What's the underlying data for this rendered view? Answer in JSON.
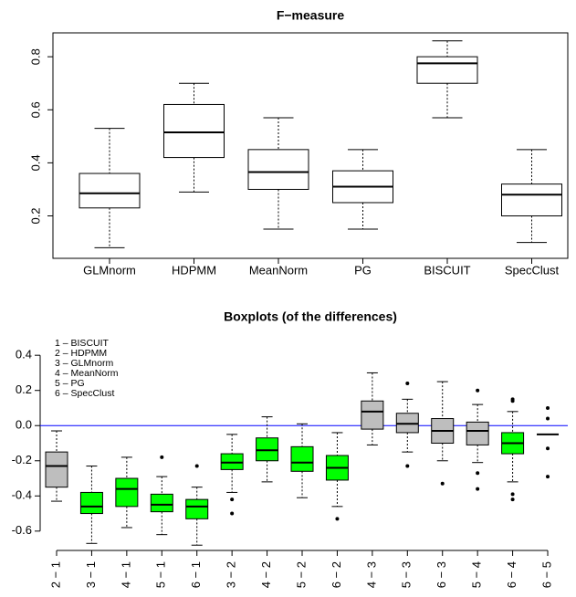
{
  "chart_data": [
    {
      "type": "boxplot",
      "title": "F−measure",
      "categories": [
        "GLMnorm",
        "HDPMM",
        "MeanNorm",
        "PG",
        "BISCUIT",
        "SpecClust"
      ],
      "boxes": [
        {
          "min": 0.08,
          "q1": 0.23,
          "median": 0.285,
          "q3": 0.36,
          "max": 0.53,
          "outliers": []
        },
        {
          "min": 0.29,
          "q1": 0.42,
          "median": 0.515,
          "q3": 0.62,
          "max": 0.7,
          "outliers": []
        },
        {
          "min": 0.15,
          "q1": 0.3,
          "median": 0.365,
          "q3": 0.45,
          "max": 0.57,
          "outliers": []
        },
        {
          "min": 0.15,
          "q1": 0.25,
          "median": 0.31,
          "q3": 0.37,
          "max": 0.45,
          "outliers": []
        },
        {
          "min": 0.57,
          "q1": 0.7,
          "median": 0.775,
          "q3": 0.8,
          "max": 0.86,
          "outliers": []
        },
        {
          "min": 0.1,
          "q1": 0.2,
          "median": 0.28,
          "q3": 0.32,
          "max": 0.45,
          "outliers": []
        }
      ],
      "colors": [
        "#ffffff",
        "#ffffff",
        "#ffffff",
        "#ffffff",
        "#ffffff",
        "#ffffff"
      ],
      "ylim": [
        0.04,
        0.89
      ],
      "yticks": [
        0.2,
        0.4,
        0.6,
        0.8
      ]
    },
    {
      "type": "boxplot",
      "title": "Boxplots (of the differences)",
      "annotations": [
        "1 – BISCUIT",
        "2 – HDPMM",
        "3 – GLMnorm",
        "4 – MeanNorm",
        "5 – PG",
        "6 – SpecClust"
      ],
      "categories": [
        "2 − 1",
        "3 − 1",
        "4 − 1",
        "5 − 1",
        "6 − 1",
        "3 − 2",
        "4 − 2",
        "5 − 2",
        "6 − 2",
        "4 − 3",
        "5 − 3",
        "6 − 3",
        "5 − 4",
        "6 − 4",
        "6 − 5"
      ],
      "boxes": [
        {
          "min": -0.43,
          "q1": -0.35,
          "median": -0.23,
          "q3": -0.15,
          "max": -0.03,
          "outliers": []
        },
        {
          "min": -0.67,
          "q1": -0.5,
          "median": -0.46,
          "q3": -0.38,
          "max": -0.23,
          "outliers": []
        },
        {
          "min": -0.58,
          "q1": -0.46,
          "median": -0.36,
          "q3": -0.3,
          "max": -0.18,
          "outliers": []
        },
        {
          "min": -0.62,
          "q1": -0.49,
          "median": -0.45,
          "q3": -0.39,
          "max": -0.29,
          "outliers": [
            -0.18
          ]
        },
        {
          "min": -0.68,
          "q1": -0.53,
          "median": -0.46,
          "q3": -0.42,
          "max": -0.35,
          "outliers": [
            -0.23
          ]
        },
        {
          "min": -0.38,
          "q1": -0.25,
          "median": -0.21,
          "q3": -0.16,
          "max": -0.05,
          "outliers": [
            -0.42,
            -0.5
          ]
        },
        {
          "min": -0.32,
          "q1": -0.2,
          "median": -0.14,
          "q3": -0.07,
          "max": 0.05,
          "outliers": []
        },
        {
          "min": -0.41,
          "q1": -0.26,
          "median": -0.21,
          "q3": -0.12,
          "max": 0.01,
          "outliers": []
        },
        {
          "min": -0.46,
          "q1": -0.31,
          "median": -0.24,
          "q3": -0.17,
          "max": -0.04,
          "outliers": [
            -0.53
          ]
        },
        {
          "min": -0.11,
          "q1": -0.02,
          "median": 0.08,
          "q3": 0.14,
          "max": 0.3,
          "outliers": []
        },
        {
          "min": -0.15,
          "q1": -0.04,
          "median": 0.01,
          "q3": 0.07,
          "max": 0.15,
          "outliers": [
            0.24,
            -0.23
          ]
        },
        {
          "min": -0.2,
          "q1": -0.1,
          "median": -0.03,
          "q3": 0.04,
          "max": 0.25,
          "outliers": [
            -0.33
          ]
        },
        {
          "min": -0.21,
          "q1": -0.11,
          "median": -0.03,
          "q3": 0.02,
          "max": 0.12,
          "outliers": [
            0.2,
            -0.27,
            -0.36
          ]
        },
        {
          "min": -0.32,
          "q1": -0.16,
          "median": -0.1,
          "q3": -0.04,
          "max": 0.08,
          "outliers": [
            0.15,
            0.14,
            -0.39,
            -0.42
          ]
        },
        {
          "min": -0.05,
          "q1": -0.05,
          "median": -0.05,
          "q3": -0.05,
          "max": -0.05,
          "outliers": [
            0.1,
            0.04,
            -0.13,
            -0.29
          ]
        }
      ],
      "colors": [
        "#bebebe",
        "#00ff00",
        "#00ff00",
        "#00ff00",
        "#00ff00",
        "#00ff00",
        "#00ff00",
        "#00ff00",
        "#00ff00",
        "#bebebe",
        "#bebebe",
        "#bebebe",
        "#bebebe",
        "#00ff00",
        "#bebebe"
      ],
      "reference_line": 0,
      "reference_color": "#0000ff",
      "ylim": [
        -0.71,
        0.51
      ],
      "yticks": [
        0.4,
        0.2,
        {
          "value": 0,
          "label": "0.0"
        },
        -0.2,
        -0.4,
        -0.6
      ]
    }
  ]
}
